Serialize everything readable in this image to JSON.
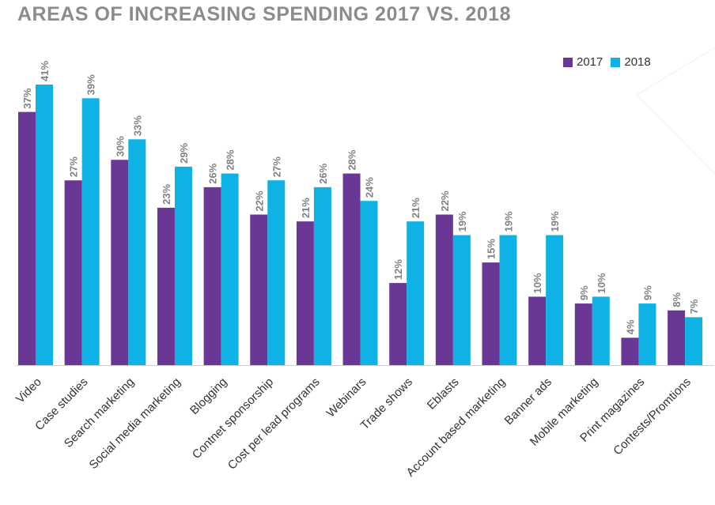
{
  "chart_data": {
    "type": "bar",
    "title": "AREAS OF INCREASING SPENDING 2017 VS. 2018",
    "xlabel": "",
    "ylabel": "",
    "ylim": [
      0,
      41
    ],
    "grid": false,
    "legend_position": "top-right",
    "categories": [
      "Video",
      "Case studies",
      "Search marketing",
      "Social media marketing",
      "Blogging",
      "Contnet sponsorship",
      "Cost per lead programs",
      "Webinars",
      "Trade shows",
      "Eblasts",
      "Account based marketing",
      "Banner ads",
      "Mobile marketing",
      "Print magazines",
      "Contests/Promtions"
    ],
    "series": [
      {
        "name": "2017",
        "color": "#6b3795",
        "values": [
          37,
          27,
          30,
          23,
          26,
          22,
          21,
          28,
          12,
          22,
          15,
          10,
          9,
          4,
          8
        ]
      },
      {
        "name": "2018",
        "color": "#0fb2e4",
        "values": [
          41,
          39,
          33,
          29,
          28,
          27,
          26,
          24,
          21,
          19,
          19,
          19,
          10,
          9,
          7
        ]
      }
    ],
    "value_suffix": "%"
  }
}
